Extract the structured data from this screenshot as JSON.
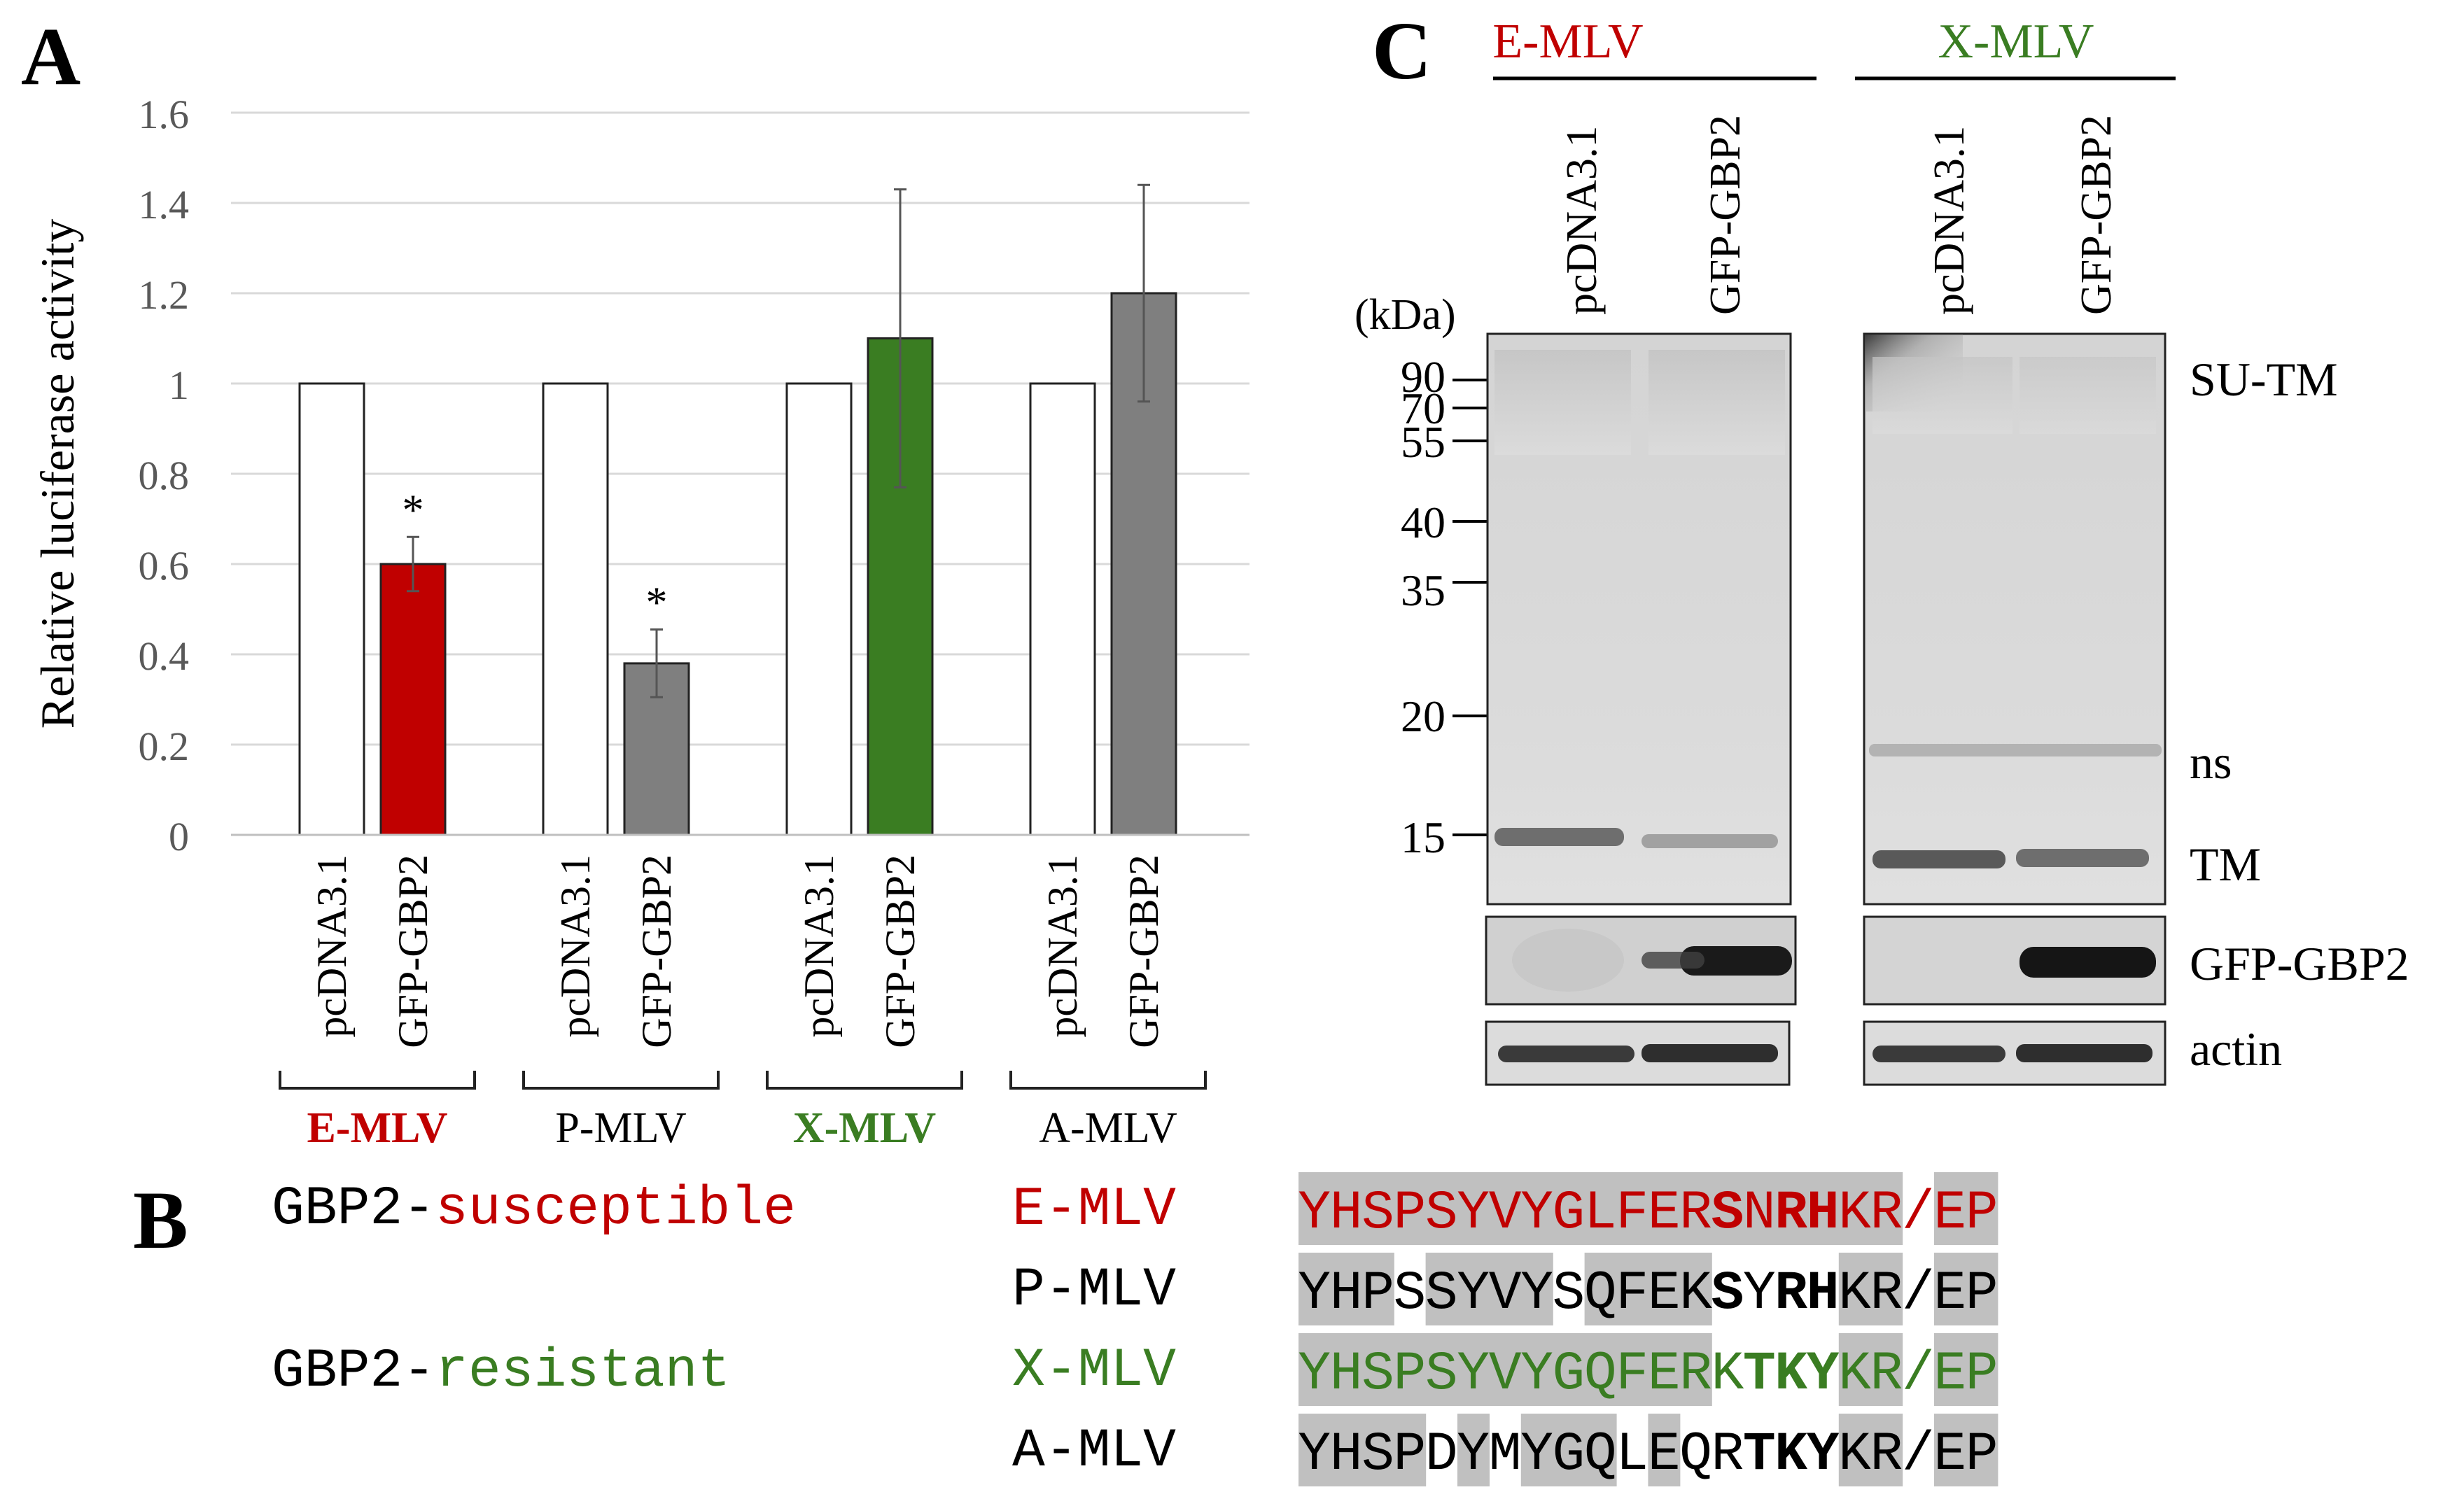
{
  "panel_labels": {
    "a": "A",
    "b": "B",
    "c": "C"
  },
  "chart_data": {
    "type": "bar",
    "title": "",
    "xlabel": "",
    "ylabel": "Relative luciferase activity",
    "ylim": [
      0,
      1.6
    ],
    "yticks": [
      "0",
      "0.2",
      "0.4",
      "0.6",
      "0.8",
      "1",
      "1.2",
      "1.4",
      "1.6"
    ],
    "grid": true,
    "legend": "none",
    "groups": [
      {
        "name": "E-MLV",
        "color": "#c00000",
        "bold": true
      },
      {
        "name": "P-MLV",
        "color": "#000000",
        "bold": false
      },
      {
        "name": "X-MLV",
        "color": "#3a7d22",
        "bold": true
      },
      {
        "name": "A-MLV",
        "color": "#000000",
        "bold": false
      }
    ],
    "categories": [
      "pcDNA3.1",
      "GFP-GBP2",
      "pcDNA3.1",
      "GFP-GBP2",
      "pcDNA3.1",
      "GFP-GBP2",
      "pcDNA3.1",
      "GFP-GBP2"
    ],
    "values": [
      1,
      0.6,
      1,
      0.38,
      1,
      1.1,
      1,
      1.2
    ],
    "errors": [
      0,
      0.06,
      0,
      0.075,
      0,
      0.33,
      0,
      0.24
    ],
    "fills": [
      "#ffffff",
      "#c00000",
      "#ffffff",
      "#7f7f7f",
      "#ffffff",
      "#3a7d22",
      "#ffffff",
      "#7f7f7f"
    ],
    "significance": [
      "",
      "*",
      "",
      "*",
      "",
      "",
      "",
      ""
    ]
  },
  "alignment": {
    "label_prefix": "GBP2-",
    "susceptible": "susceptible",
    "resistant": "resistant",
    "susceptible_color": "#c00000",
    "resistant_color": "#3a7d22",
    "rows": [
      {
        "virus": "E-MLV",
        "color": "#c00000",
        "seq": [
          "Y",
          "H",
          "S",
          "P",
          "S",
          "Y",
          "V",
          "Y",
          "G",
          "L",
          "F",
          "E",
          "R",
          "S",
          "N",
          "R",
          "H",
          "K",
          "R",
          "/",
          "E",
          "P"
        ],
        "shaded": [
          1,
          1,
          1,
          1,
          1,
          1,
          1,
          1,
          1,
          1,
          1,
          1,
          1,
          1,
          1,
          1,
          1,
          1,
          1,
          0,
          1,
          1
        ],
        "bold": [
          0,
          0,
          0,
          0,
          0,
          0,
          0,
          0,
          0,
          0,
          0,
          0,
          0,
          1,
          0,
          1,
          1,
          0,
          0,
          0,
          0,
          0
        ]
      },
      {
        "virus": "P-MLV",
        "color": "#000000",
        "seq": [
          "Y",
          "H",
          "P",
          "S",
          "S",
          "Y",
          "V",
          "Y",
          "S",
          "Q",
          "F",
          "E",
          "K",
          "S",
          "Y",
          "R",
          "H",
          "K",
          "R",
          "/",
          "E",
          "P"
        ],
        "shaded": [
          1,
          1,
          1,
          0,
          1,
          1,
          1,
          1,
          0,
          1,
          1,
          1,
          1,
          0,
          0,
          0,
          0,
          1,
          1,
          0,
          1,
          1
        ],
        "bold": [
          0,
          0,
          0,
          0,
          0,
          0,
          0,
          0,
          0,
          0,
          0,
          0,
          0,
          1,
          0,
          1,
          1,
          0,
          0,
          0,
          0,
          0
        ]
      },
      {
        "virus": "X-MLV",
        "color": "#3a7d22",
        "seq": [
          "Y",
          "H",
          "S",
          "P",
          "S",
          "Y",
          "V",
          "Y",
          "G",
          "Q",
          "F",
          "E",
          "R",
          "K",
          "T",
          "K",
          "Y",
          "K",
          "R",
          "/",
          "E",
          "P"
        ],
        "shaded": [
          1,
          1,
          1,
          1,
          1,
          1,
          1,
          1,
          1,
          1,
          1,
          1,
          1,
          0,
          0,
          0,
          0,
          1,
          1,
          0,
          1,
          1
        ],
        "bold": [
          0,
          0,
          0,
          0,
          0,
          0,
          0,
          0,
          0,
          0,
          0,
          0,
          0,
          0,
          1,
          1,
          1,
          0,
          0,
          0,
          0,
          0
        ]
      },
      {
        "virus": "A-MLV",
        "color": "#000000",
        "seq": [
          "Y",
          "H",
          "S",
          "P",
          "D",
          "Y",
          "M",
          "Y",
          "G",
          "Q",
          "L",
          "E",
          "Q",
          "R",
          "T",
          "K",
          "Y",
          "K",
          "R",
          "/",
          "E",
          "P"
        ],
        "shaded": [
          1,
          1,
          1,
          1,
          0,
          1,
          0,
          1,
          1,
          1,
          0,
          1,
          0,
          0,
          0,
          0,
          0,
          1,
          1,
          0,
          1,
          1
        ],
        "bold": [
          0,
          0,
          0,
          0,
          0,
          0,
          0,
          0,
          0,
          0,
          0,
          0,
          0,
          0,
          1,
          1,
          1,
          0,
          0,
          0,
          0,
          0
        ]
      }
    ]
  },
  "blot": {
    "groups": [
      {
        "name": "E-MLV",
        "color": "#c00000"
      },
      {
        "name": "X-MLV",
        "color": "#3a7d22"
      }
    ],
    "lanes": [
      "pcDNA3.1",
      "GFP-GBP2",
      "pcDNA3.1",
      "GFP-GBP2"
    ],
    "kda_label": "(kDa)",
    "markers": [
      "90",
      "70",
      "55",
      "40",
      "35",
      "20",
      "15"
    ],
    "band_labels": [
      "SU-TM",
      "ns",
      "TM",
      "GFP-GBP2",
      "actin"
    ]
  }
}
